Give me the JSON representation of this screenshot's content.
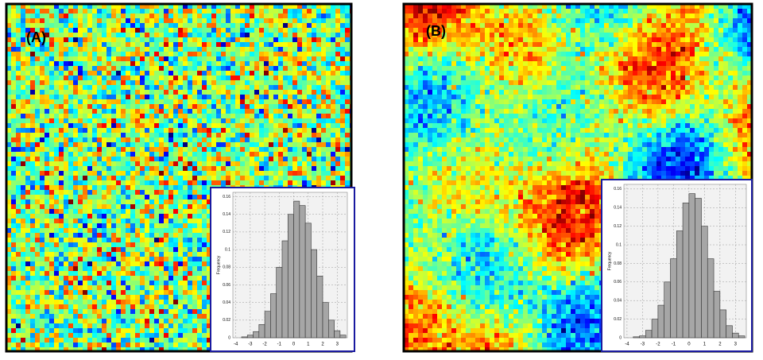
{
  "chart_data": [
    {
      "type": "histogram",
      "title": "(A)",
      "ylabel": "Frequency",
      "bins": [
        -3.6,
        -3.2,
        -2.8,
        -2.4,
        -2.0,
        -1.6,
        -1.2,
        -0.8,
        -0.4,
        0.0,
        0.4,
        0.8,
        1.2,
        1.6,
        2.0,
        2.4,
        2.8,
        3.2,
        3.6
      ],
      "values": [
        0.001,
        0.003,
        0.007,
        0.015,
        0.03,
        0.05,
        0.08,
        0.11,
        0.14,
        0.155,
        0.15,
        0.13,
        0.1,
        0.07,
        0.04,
        0.02,
        0.008,
        0.003
      ],
      "color": "#a6a6a6",
      "xlim": [
        -4.2,
        3.7
      ],
      "ylim": [
        0,
        0.165
      ],
      "xticks": [
        -4,
        -3,
        -2,
        -1,
        0,
        1,
        2,
        3
      ],
      "yticks": [
        0,
        0.02,
        0.04,
        0.06,
        0.08,
        0.1,
        0.12,
        0.14,
        0.16
      ],
      "grid": true
    },
    {
      "type": "histogram",
      "title": "(B)",
      "ylabel": "Frequency",
      "bins": [
        -3.6,
        -3.2,
        -2.8,
        -2.4,
        -2.0,
        -1.6,
        -1.2,
        -0.8,
        -0.4,
        0.0,
        0.4,
        0.8,
        1.2,
        1.6,
        2.0,
        2.4,
        2.8,
        3.2,
        3.6
      ],
      "values": [
        0.001,
        0.002,
        0.008,
        0.02,
        0.035,
        0.06,
        0.085,
        0.115,
        0.145,
        0.155,
        0.15,
        0.12,
        0.085,
        0.05,
        0.03,
        0.013,
        0.005,
        0.002
      ],
      "color": "#a6a6a6",
      "xlim": [
        -4.2,
        3.7
      ],
      "ylim": [
        0,
        0.165
      ],
      "xticks": [
        -4,
        -3,
        -2,
        -1,
        0,
        1,
        2,
        3
      ],
      "yticks": [
        0,
        0.02,
        0.04,
        0.06,
        0.08,
        0.1,
        0.12,
        0.14,
        0.16
      ],
      "grid": true
    }
  ]
}
